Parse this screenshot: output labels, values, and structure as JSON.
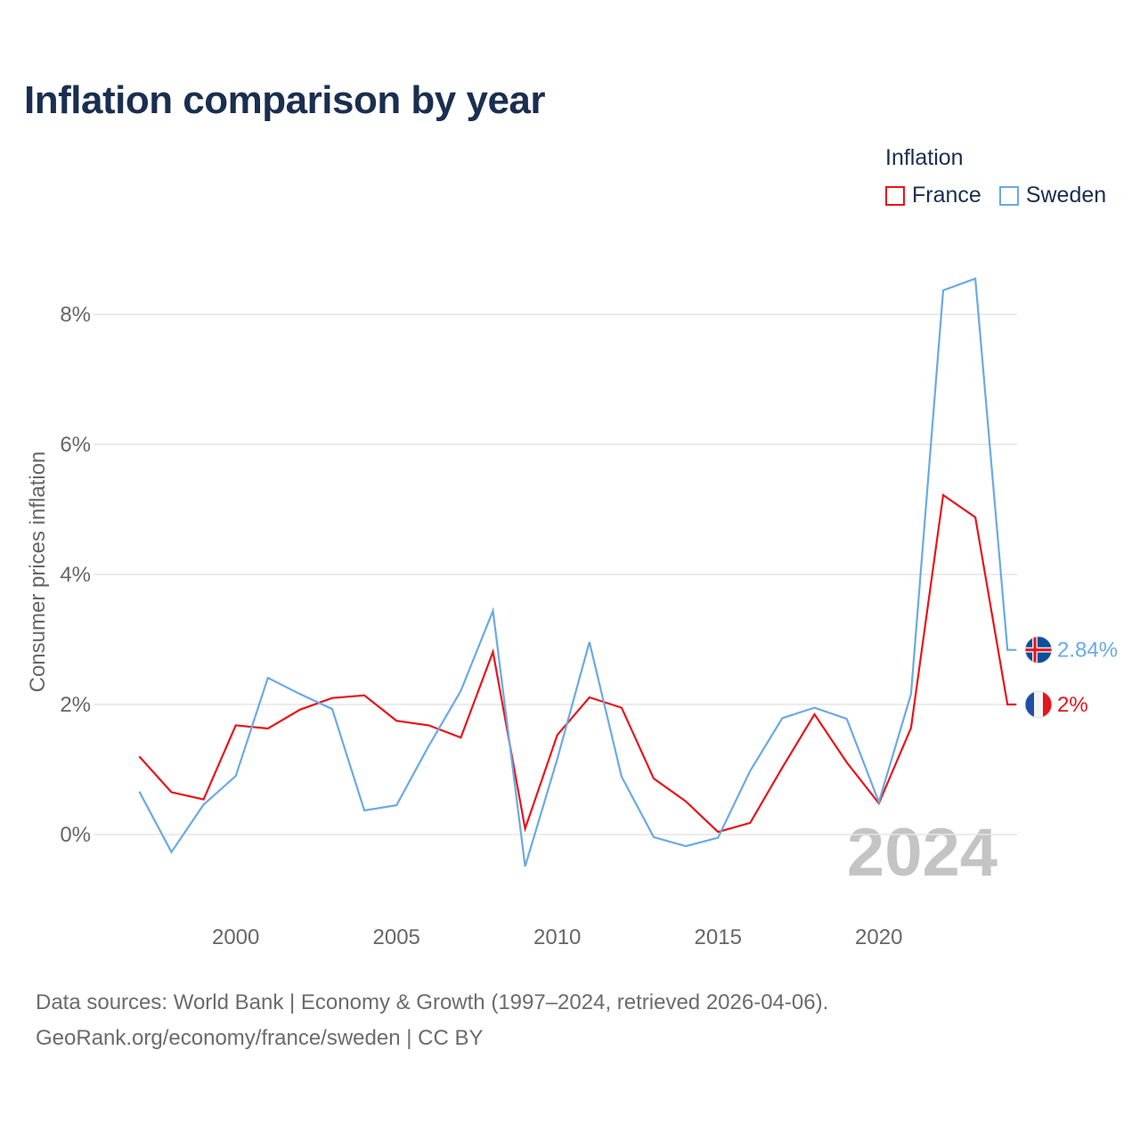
{
  "chart_data": {
    "type": "line",
    "title": "Inflation comparison by year",
    "ylabel": "Consumer prices inflation",
    "xlabel": "",
    "legend_title": "Inflation",
    "legend_position": "top-right",
    "watermark_year": "2024",
    "x": [
      1997,
      1998,
      1999,
      2000,
      2001,
      2002,
      2003,
      2004,
      2005,
      2006,
      2007,
      2008,
      2009,
      2010,
      2011,
      2012,
      2013,
      2014,
      2015,
      2016,
      2017,
      2018,
      2019,
      2020,
      2021,
      2022,
      2023,
      2024
    ],
    "xlim": [
      1995.3,
      2024.3
    ],
    "ylim": [
      -1.0,
      9.0
    ],
    "x_ticks": [
      2000,
      2005,
      2010,
      2015,
      2020
    ],
    "x_tick_labels": [
      "2000",
      "2005",
      "2010",
      "2015",
      "2020"
    ],
    "y_ticks": [
      0,
      2,
      4,
      6,
      8
    ],
    "y_tick_labels": [
      "0%",
      "2%",
      "4%",
      "6%",
      "8%"
    ],
    "grid": true,
    "series": [
      {
        "name": "France",
        "color": "#e8141b",
        "flag": "flag-france",
        "end_label": "2%",
        "values": [
          1.2,
          0.65,
          0.54,
          1.68,
          1.63,
          1.92,
          2.1,
          2.14,
          1.75,
          1.68,
          1.49,
          2.81,
          0.09,
          1.53,
          2.11,
          1.95,
          0.86,
          0.51,
          0.04,
          0.18,
          1.03,
          1.85,
          1.11,
          0.48,
          1.64,
          5.22,
          4.88,
          2.0
        ]
      },
      {
        "name": "Sweden",
        "color": "#6aaae4",
        "flag": "flag-sweden",
        "end_label": "2.84%",
        "values": [
          0.66,
          -0.27,
          0.46,
          0.9,
          2.41,
          2.16,
          1.93,
          0.37,
          0.45,
          1.36,
          2.21,
          3.44,
          -0.49,
          1.16,
          2.96,
          0.89,
          -0.04,
          -0.18,
          -0.05,
          0.98,
          1.79,
          1.95,
          1.78,
          0.5,
          2.16,
          8.37,
          8.55,
          2.84
        ]
      }
    ]
  },
  "source": {
    "line1": "Data sources: World Bank | Economy & Growth (1997–2024, retrieved 2026-04-06).",
    "line2": "GeoRank.org/economy/france/sweden | CC BY"
  }
}
